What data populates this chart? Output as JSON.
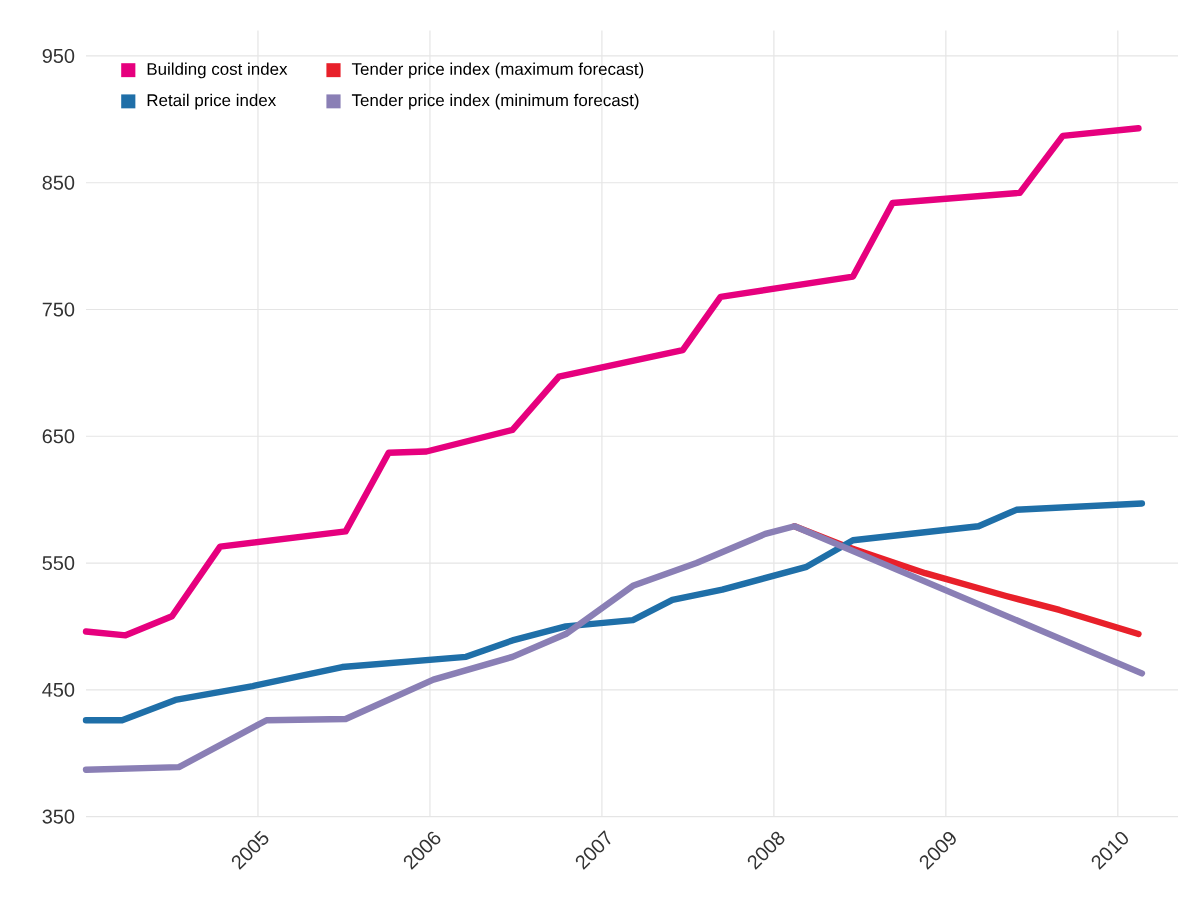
{
  "chart_data": {
    "type": "line",
    "xlim": [
      2004,
      2010.35
    ],
    "ylim": [
      350,
      970
    ],
    "xticks": [
      2005,
      2006,
      2007,
      2008,
      2009,
      2010
    ],
    "yticks": [
      350,
      450,
      550,
      650,
      750,
      850,
      950
    ],
    "grid": true,
    "legend": "top left",
    "marker": "none",
    "line_style": "solid",
    "series": [
      {
        "name": "Building cost index",
        "color": "#e6007e",
        "x": [
          2004.0,
          2004.23,
          2004.5,
          2004.78,
          2005.51,
          2005.76,
          2005.98,
          2006.48,
          2006.75,
          2007.47,
          2007.69,
          2008.46,
          2008.69,
          2009.43,
          2009.68,
          2010.12
        ],
        "values": [
          496,
          493,
          508,
          563,
          575,
          637,
          638,
          655,
          697,
          718,
          760,
          776,
          834,
          842,
          887,
          893
        ]
      },
      {
        "name": "Tender price index (maximum forecast)",
        "color": "#e8202a",
        "x": [
          2008.12,
          2008.42,
          2008.88,
          2009.35,
          2009.66,
          2010.12
        ],
        "values": [
          579,
          563,
          542,
          524,
          513,
          494
        ]
      },
      {
        "name": "Retail price index",
        "color": "#1f6fa8",
        "x": [
          2004.0,
          2004.21,
          2004.52,
          2004.97,
          2005.49,
          2006.21,
          2006.48,
          2006.79,
          2007.18,
          2007.41,
          2007.7,
          2008.19,
          2008.46,
          2009.19,
          2009.41,
          2010.14
        ],
        "values": [
          426,
          426,
          442,
          453,
          468,
          476,
          489,
          500,
          505,
          521,
          529,
          547,
          568,
          579,
          592,
          597
        ]
      },
      {
        "name": "Tender price index (minimum forecast)",
        "color": "#8a7fb5",
        "x": [
          2004.0,
          2004.54,
          2005.05,
          2005.51,
          2006.02,
          2006.48,
          2006.79,
          2007.18,
          2007.55,
          2007.95,
          2008.12,
          2010.14
        ],
        "values": [
          387,
          389,
          426,
          427,
          458,
          476,
          494,
          532,
          550,
          573,
          579,
          463
        ]
      }
    ]
  }
}
